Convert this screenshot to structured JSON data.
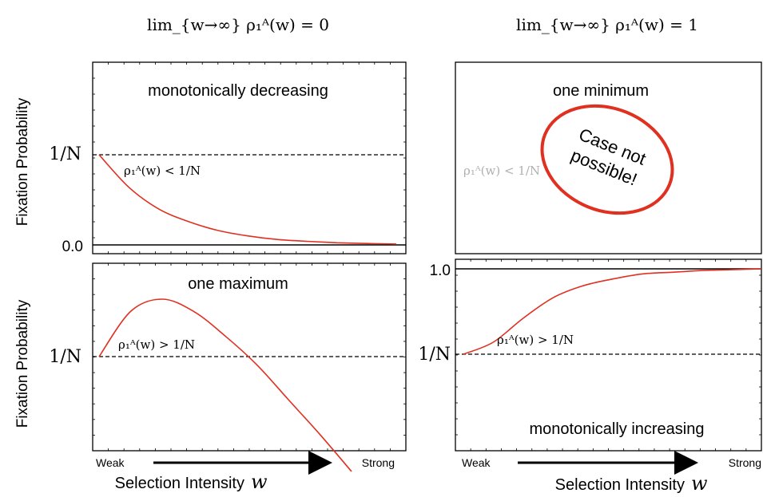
{
  "titles": {
    "left": "lim_{w→∞} ρ₁ᴬ(w) = 0",
    "right": "lim_{w→∞} ρ₁ᴬ(w) = 1"
  },
  "colors": {
    "curve": "#e03020",
    "stamp": "#e03020",
    "ghost_text": "#b0b0b0"
  },
  "y_axis_label": "Fixation Probability",
  "x_axis": {
    "label": "Selection Intensity",
    "variable": "w",
    "weak": "Weak",
    "strong": "Strong"
  },
  "ticks": {
    "one_over_n": "1/N",
    "zero": "0.0",
    "one": "1.0"
  },
  "panels": {
    "top_left": {
      "label": "monotonically decreasing",
      "condition": "ρ₁ᴬ(w) < 1/N"
    },
    "top_right": {
      "label": "one minimum",
      "condition": "ρ₁ᴬ(w) < 1/N",
      "stamp_line1": "Case not",
      "stamp_line2": "possible!"
    },
    "bottom_left": {
      "label": "one maximum",
      "condition": "ρ₁ᴬ(w) > 1/N"
    },
    "bottom_right": {
      "label": "monotonically increasing",
      "condition": "ρ₁ᴬ(w) > 1/N"
    }
  },
  "chart_data": [
    {
      "type": "line",
      "panel": "top_left",
      "x": [
        0,
        0.1,
        0.2,
        0.3,
        0.4,
        0.5,
        0.6,
        0.7,
        0.8,
        0.9,
        1.0
      ],
      "series": [
        {
          "values": [
            0.5,
            0.32,
            0.2,
            0.13,
            0.08,
            0.05,
            0.03,
            0.02,
            0.012,
            0.008,
            0.005
          ]
        }
      ],
      "hlines": {
        "one_over_n": 0.5,
        "zero": 0.0
      },
      "ylim": [
        -0.02,
        1.05
      ]
    },
    {
      "type": "line",
      "panel": "bottom_left",
      "x": [
        0,
        0.1,
        0.2,
        0.3,
        0.4,
        0.5,
        0.6,
        0.7,
        0.8
      ],
      "series": [
        {
          "values": [
            0.5,
            0.72,
            0.78,
            0.72,
            0.6,
            0.46,
            0.29,
            0.12,
            -0.06
          ]
        }
      ],
      "hlines": {
        "one_over_n": 0.5
      },
      "ylim": [
        -0.05,
        0.95
      ]
    },
    {
      "type": "line",
      "panel": "bottom_right",
      "x": [
        0,
        0.1,
        0.2,
        0.3,
        0.4,
        0.5,
        0.6,
        0.7,
        0.8,
        0.9,
        1.0
      ],
      "series": [
        {
          "values": [
            0.5,
            0.57,
            0.71,
            0.83,
            0.9,
            0.94,
            0.97,
            0.98,
            0.99,
            0.995,
            1.0
          ]
        }
      ],
      "hlines": {
        "one_over_n": 0.5,
        "one": 1.0
      },
      "ylim": [
        0,
        1.05
      ]
    }
  ]
}
